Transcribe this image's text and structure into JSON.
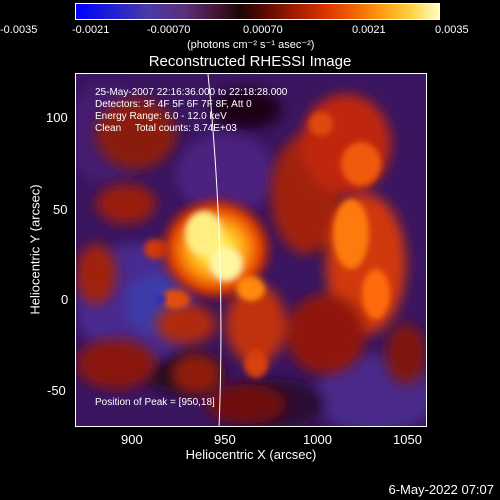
{
  "colorbar": {
    "ticks": [
      "-0.0035",
      "-0.0021",
      "-0.00070",
      "0.00070",
      "0.0021",
      "0.0035"
    ],
    "unit_label": "(photons cm⁻² s⁻¹ asec⁻²)"
  },
  "title": "Reconstructed RHESSI Image",
  "info": {
    "time_range": "25-May-2007 22:16:36.000 to 22:18:28.000",
    "detectors": "Detectors: 3F 4F 5F 6F 7F 8F, Att 0",
    "energy": "Energy Range: 6.0 - 12.0 keV",
    "clean": "Clean     Total counts: 8.74E+03",
    "peak": "Position of Peak = [950,18]"
  },
  "axes": {
    "xlabel": "Heliocentric X (arcsec)",
    "ylabel": "Heliocentric Y (arcsec)",
    "xticks": [
      "900",
      "950",
      "1000",
      "1050"
    ],
    "yticks": [
      "100",
      "50",
      "0",
      "-50"
    ]
  },
  "footer_date": "6-May-2022 07:07"
}
